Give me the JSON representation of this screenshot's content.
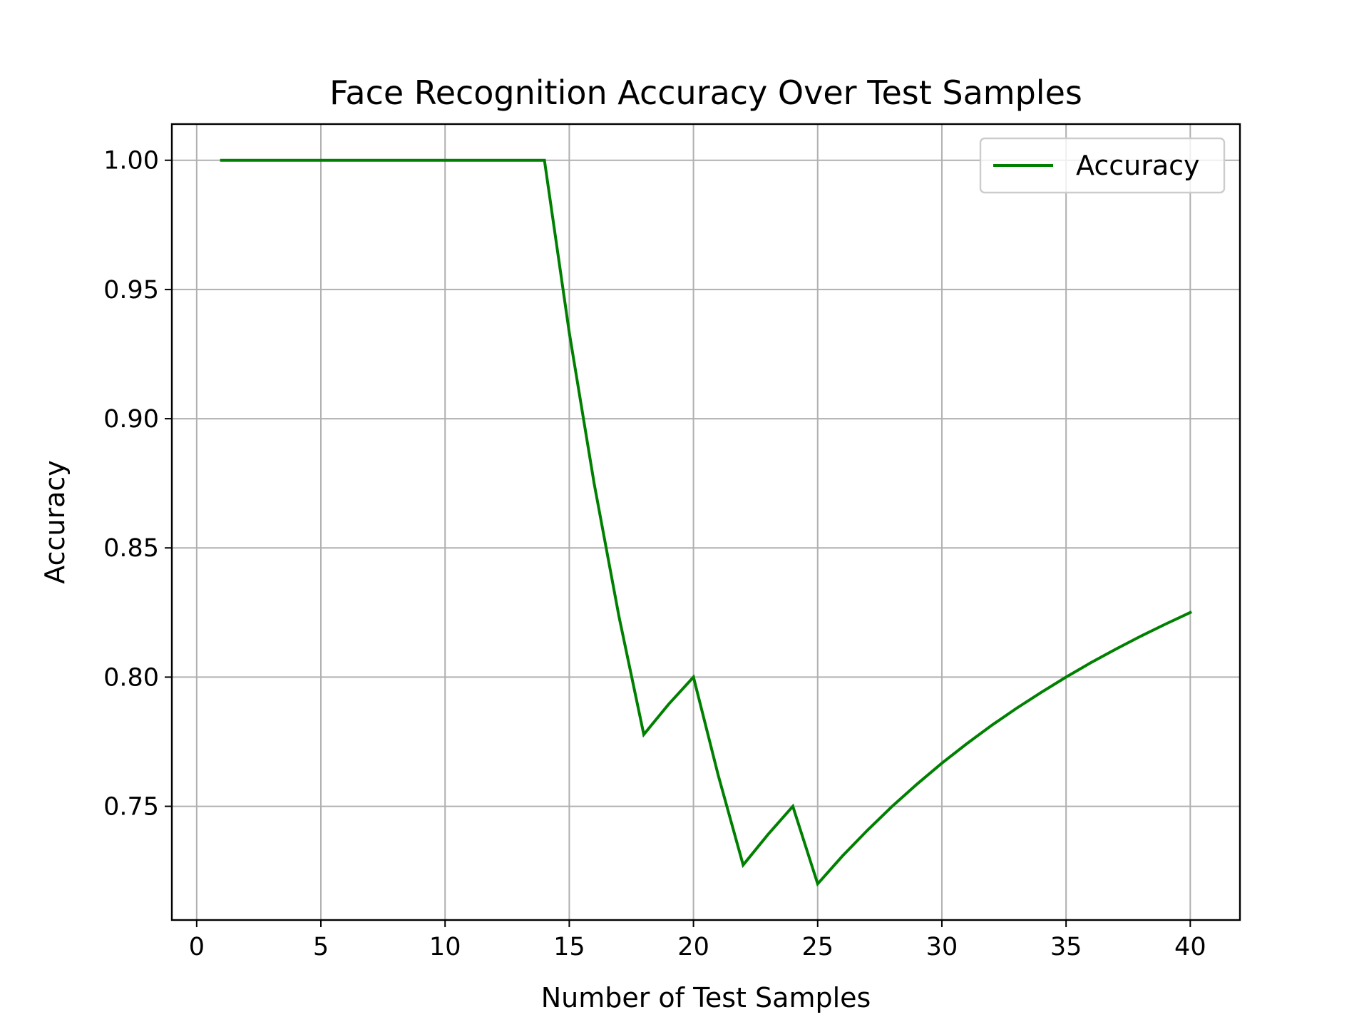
{
  "chart_data": {
    "type": "line",
    "title": "Face Recognition Accuracy Over Test Samples",
    "xlabel": "Number of Test Samples",
    "ylabel": "Accuracy",
    "xlim": [
      -1,
      42
    ],
    "ylim": [
      0.706,
      1.014
    ],
    "xticks": [
      0,
      5,
      10,
      15,
      20,
      25,
      30,
      35,
      40
    ],
    "xtick_labels": [
      "0",
      "5",
      "10",
      "15",
      "20",
      "25",
      "30",
      "35",
      "40"
    ],
    "yticks": [
      0.75,
      0.8,
      0.85,
      0.9,
      0.95,
      1.0
    ],
    "ytick_labels": [
      "0.75",
      "0.80",
      "0.85",
      "0.90",
      "0.95",
      "1.00"
    ],
    "grid": true,
    "legend_position": "upper-right",
    "series": [
      {
        "name": "Accuracy",
        "color": "#008000",
        "x": [
          1,
          2,
          3,
          4,
          5,
          6,
          7,
          8,
          9,
          10,
          11,
          12,
          13,
          14,
          15,
          16,
          17,
          18,
          19,
          20,
          21,
          22,
          23,
          24,
          25,
          26,
          27,
          28,
          29,
          30,
          31,
          32,
          33,
          34,
          35,
          36,
          37,
          38,
          39,
          40
        ],
        "y": [
          1.0,
          1.0,
          1.0,
          1.0,
          1.0,
          1.0,
          1.0,
          1.0,
          1.0,
          1.0,
          1.0,
          1.0,
          1.0,
          1.0,
          0.9333,
          0.875,
          0.8235,
          0.7778,
          0.7895,
          0.8,
          0.7619,
          0.7273,
          0.7391,
          0.75,
          0.72,
          0.7308,
          0.7407,
          0.75,
          0.7586,
          0.7667,
          0.7742,
          0.7813,
          0.7879,
          0.7941,
          0.8,
          0.8056,
          0.8108,
          0.8158,
          0.8205,
          0.825
        ]
      }
    ]
  }
}
